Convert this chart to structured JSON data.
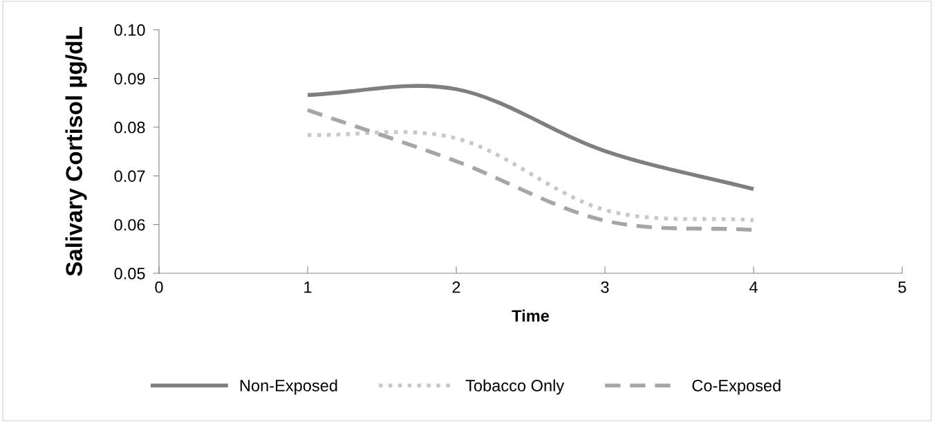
{
  "chart_data": {
    "type": "line",
    "xlabel": "Time",
    "ylabel": "Salivary Cortisol µg/dL",
    "x": [
      1,
      2,
      3,
      4
    ],
    "series": [
      {
        "name": "Non-Exposed",
        "color": "#7f7f7f",
        "line_style": "solid",
        "values": [
          0.0866,
          0.0878,
          0.0751,
          0.0673
        ]
      },
      {
        "name": "Tobacco Only",
        "color": "#c8c8c8",
        "line_style": "dotted",
        "values": [
          0.0784,
          0.0777,
          0.063,
          0.0609
        ]
      },
      {
        "name": "Co-Exposed",
        "color": "#a6a6a6",
        "line_style": "dashed",
        "values": [
          0.0835,
          0.073,
          0.0608,
          0.0589
        ]
      }
    ],
    "xlim": [
      0,
      5
    ],
    "xticks": [
      0,
      1,
      2,
      3,
      4,
      5
    ],
    "ylim": [
      0.05,
      0.1
    ],
    "yticks": [
      {
        "value": 0.05,
        "label": "0.05"
      },
      {
        "value": 0.06,
        "label": "0.06"
      },
      {
        "value": 0.07,
        "label": "0.07"
      },
      {
        "value": 0.08,
        "label": "0.08"
      },
      {
        "value": 0.09,
        "label": "0.09"
      },
      {
        "value": 0.1,
        "label": "0.10"
      }
    ],
    "grid": false,
    "legend": "bottom",
    "marker": "none"
  }
}
